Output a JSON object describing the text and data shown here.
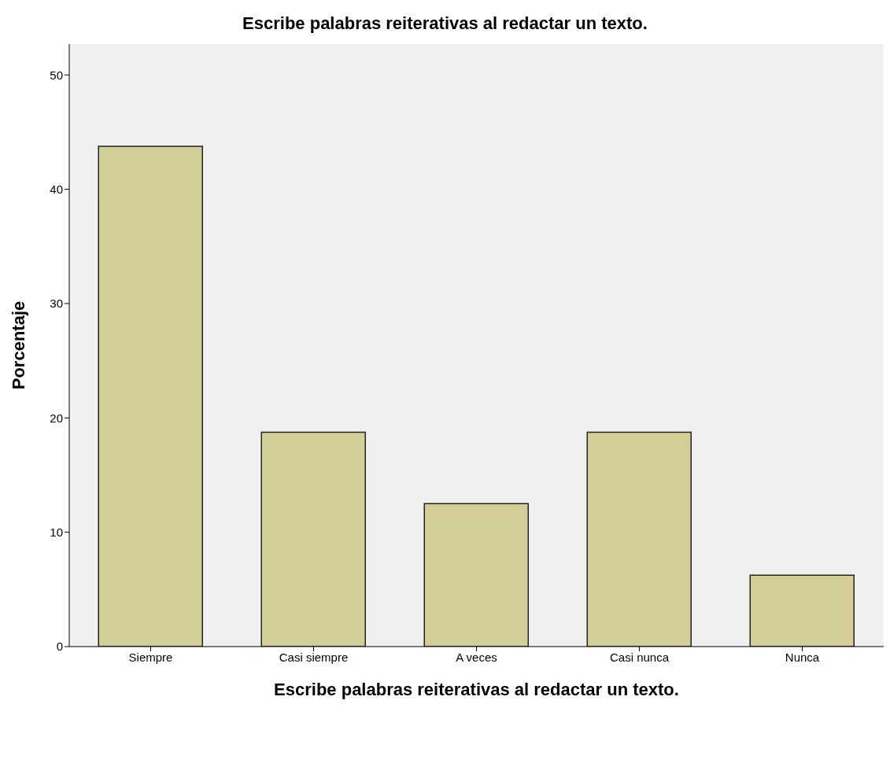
{
  "chart_data": {
    "type": "bar",
    "title": "Escribe palabras reiterativas al redactar un texto.",
    "xlabel": "Escribe palabras reiterativas al redactar un texto.",
    "ylabel": "Porcentaje",
    "categories": [
      "Siempre",
      "Casi siempre",
      "A veces",
      "Casi nunca",
      "Nunca"
    ],
    "values": [
      43.75,
      18.75,
      12.5,
      18.75,
      6.25
    ],
    "color": "#d3ce97",
    "ylim": [
      0,
      52.7
    ],
    "yticks": [
      0,
      10,
      20,
      30,
      40,
      50
    ],
    "grid": false
  }
}
